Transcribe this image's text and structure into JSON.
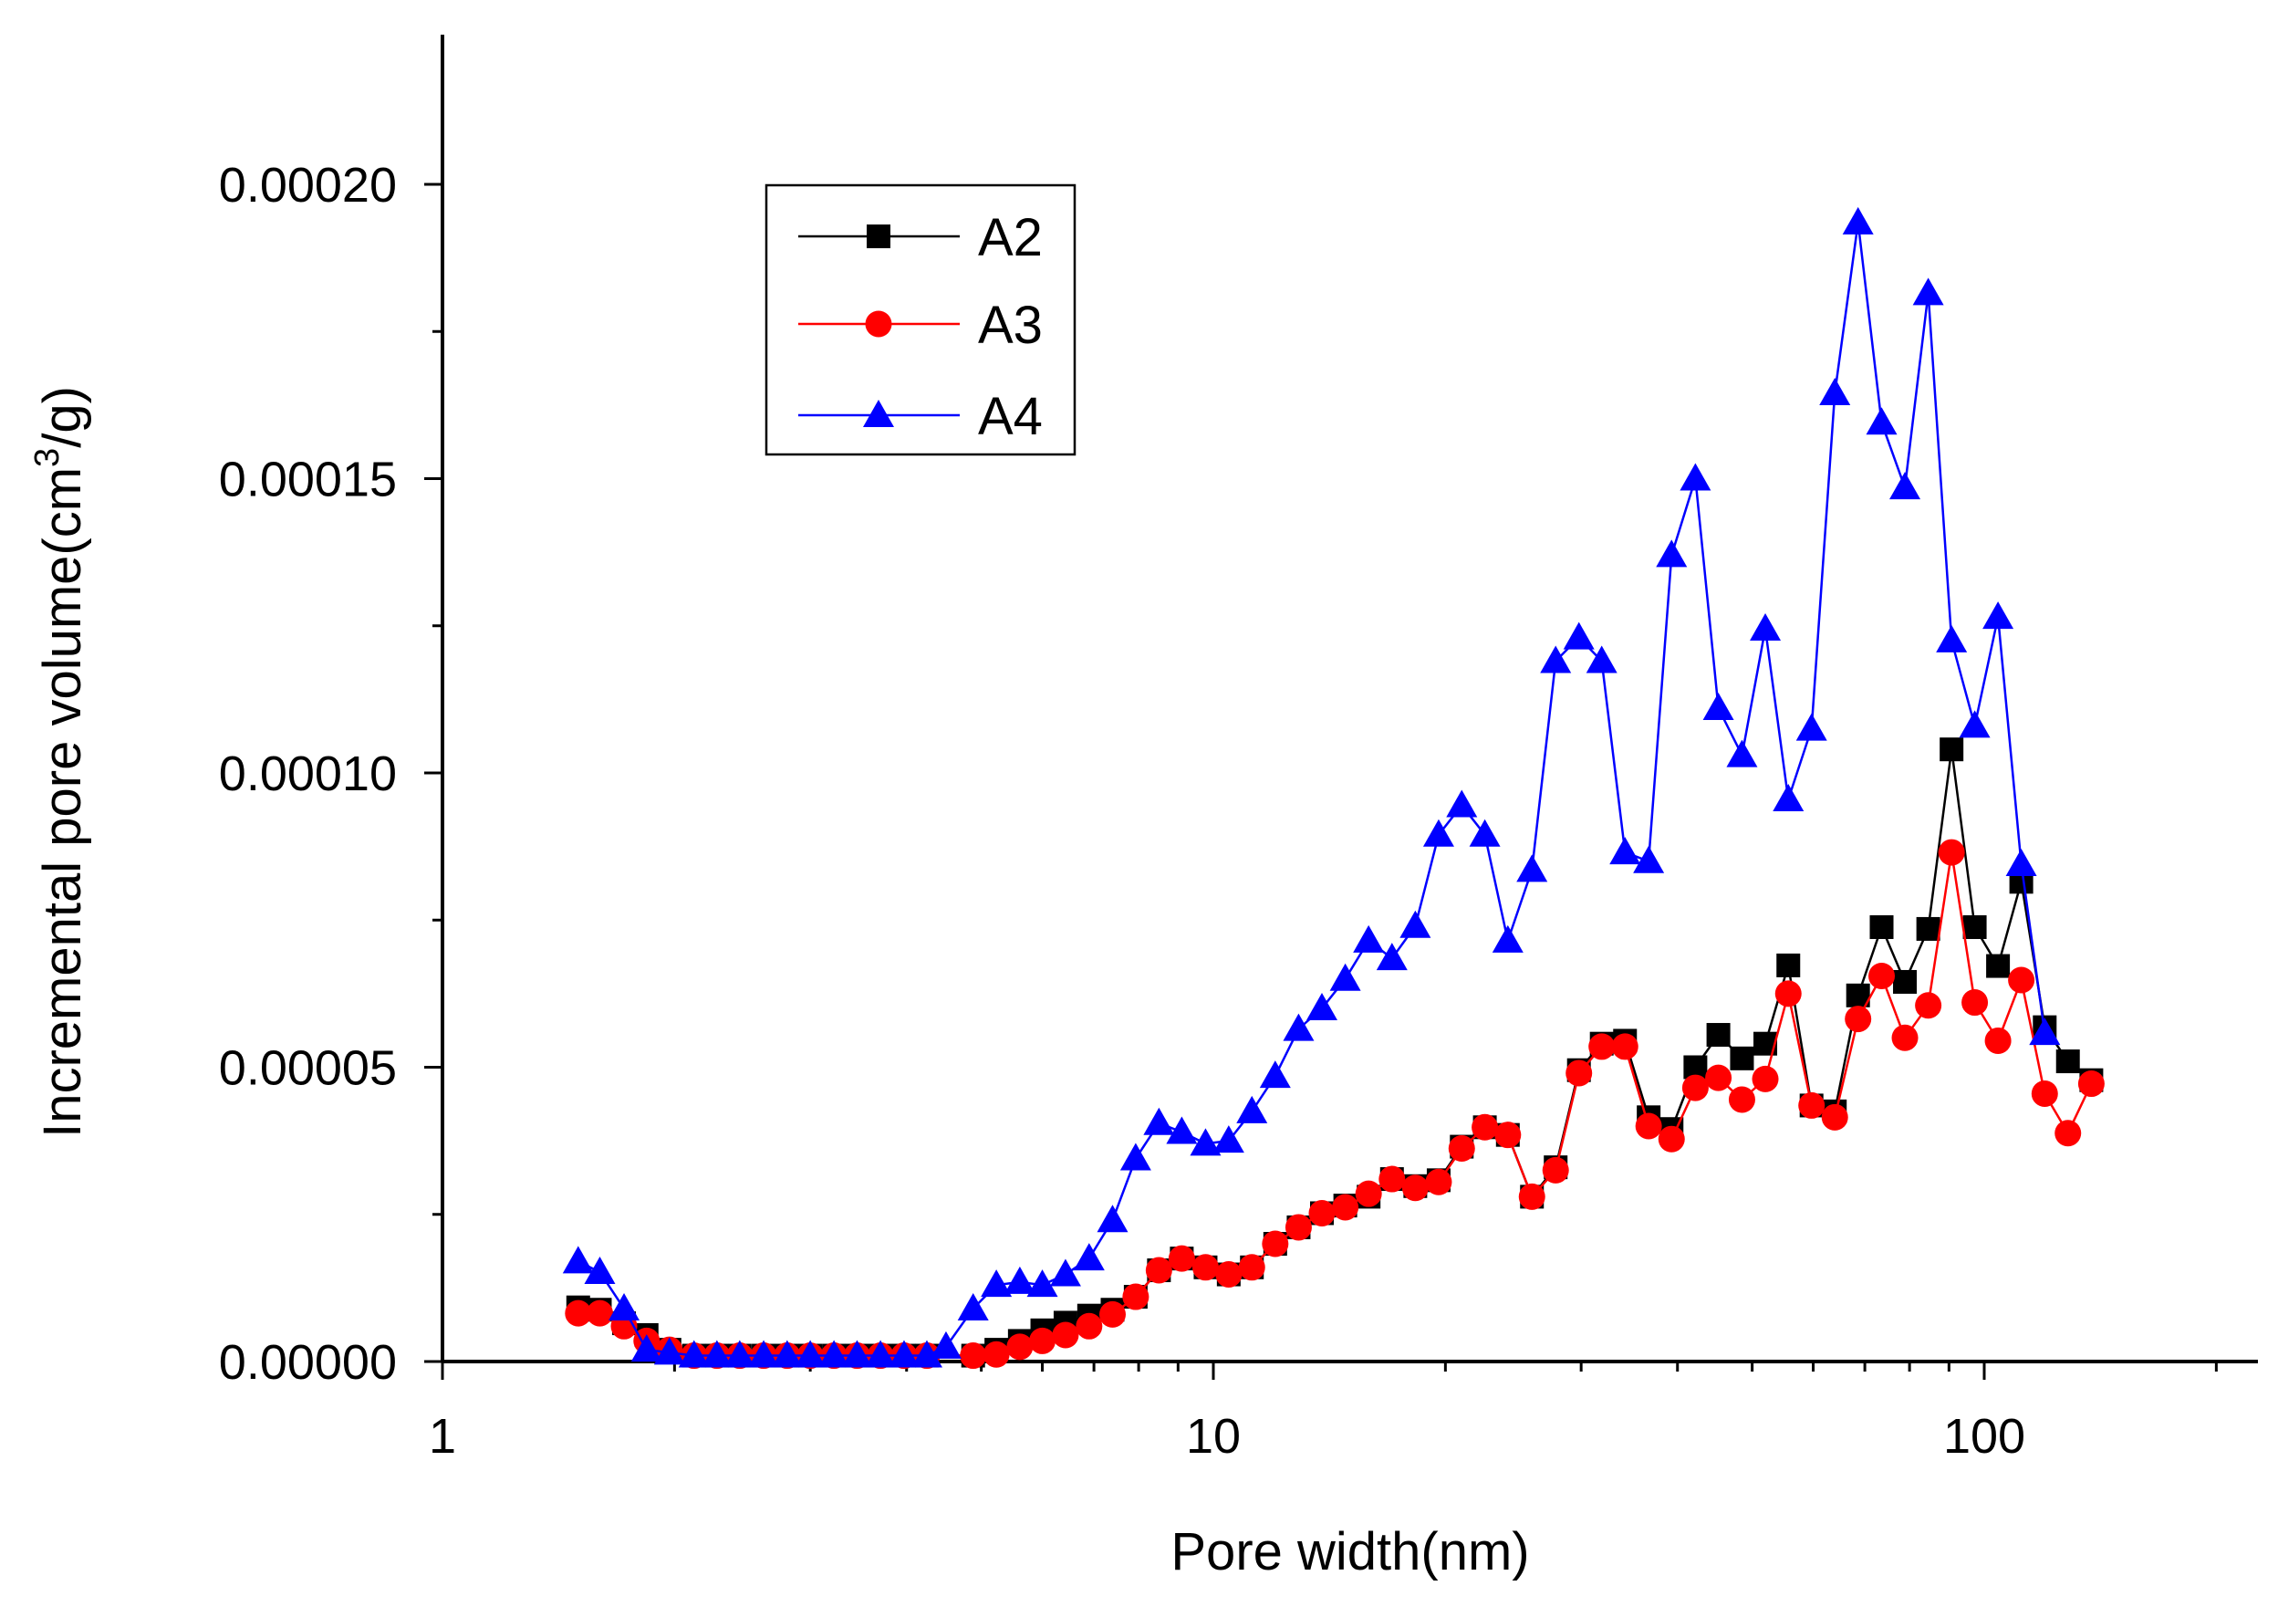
{
  "chart_data": {
    "type": "line",
    "title": "",
    "xlabel": "Pore width(nm)",
    "ylabel_main": "Incremental pore volume(cm",
    "ylabel_sup": "3",
    "ylabel_end": "/g)",
    "xscale": "log",
    "xlim": [
      1,
      240
    ],
    "ylim": [
      0,
      0.000225
    ],
    "x_ticks": [
      {
        "value": 1,
        "label": "1"
      },
      {
        "value": 10,
        "label": "10"
      },
      {
        "value": 100,
        "label": "100"
      }
    ],
    "y_ticks": [
      {
        "value": 0.0,
        "label": "0.00000"
      },
      {
        "value": 5e-05,
        "label": "0.00005"
      },
      {
        "value": 0.0001,
        "label": "0.00010"
      },
      {
        "value": 0.00015,
        "label": "0.00015"
      },
      {
        "value": 0.0002,
        "label": "0.00020"
      }
    ],
    "legend_position": "upper-left",
    "series": [
      {
        "name": "A2",
        "color": "#000000",
        "marker": "square",
        "points": [
          [
            1.5,
            9.2e-06
          ],
          [
            1.6,
            8.8e-06
          ],
          [
            1.72,
            6.5e-06
          ],
          [
            1.84,
            4.5e-06
          ],
          [
            1.97,
            2e-06
          ],
          [
            2.12,
            1e-06
          ],
          [
            2.27,
            1e-06
          ],
          [
            2.43,
            1e-06
          ],
          [
            2.61,
            1e-06
          ],
          [
            2.8,
            1e-06
          ],
          [
            3.0,
            1e-06
          ],
          [
            3.22,
            1e-06
          ],
          [
            3.45,
            1e-06
          ],
          [
            3.7,
            1e-06
          ],
          [
            3.97,
            1e-06
          ],
          [
            4.25,
            1e-06
          ],
          [
            4.88,
            1e-06
          ],
          [
            5.23,
            2e-06
          ],
          [
            5.61,
            3.5e-06
          ],
          [
            6.0,
            5.3e-06
          ],
          [
            6.43,
            6.6e-06
          ],
          [
            6.9,
            7.8e-06
          ],
          [
            7.4,
            8.8e-06
          ],
          [
            7.93,
            1.1e-05
          ],
          [
            8.5,
            1.55e-05
          ],
          [
            9.1,
            1.75e-05
          ],
          [
            9.77,
            1.6e-05
          ],
          [
            10.47,
            1.48e-05
          ],
          [
            11.22,
            1.6e-05
          ],
          [
            12.03,
            2e-05
          ],
          [
            12.9,
            2.28e-05
          ],
          [
            13.83,
            2.52e-05
          ],
          [
            14.83,
            2.65e-05
          ],
          [
            15.9,
            2.8e-05
          ],
          [
            17.05,
            3.1e-05
          ],
          [
            18.28,
            2.98e-05
          ],
          [
            19.6,
            3.08e-05
          ],
          [
            21.0,
            3.65e-05
          ],
          [
            22.5,
            3.98e-05
          ],
          [
            24.1,
            3.85e-05
          ],
          [
            25.9,
            2.8e-05
          ],
          [
            27.8,
            3.3e-05
          ],
          [
            29.8,
            4.95e-05
          ],
          [
            31.9,
            5.4e-05
          ],
          [
            34.2,
            5.45e-05
          ],
          [
            36.7,
            4.15e-05
          ],
          [
            39.3,
            3.95e-05
          ],
          [
            42.2,
            5e-05
          ],
          [
            45.2,
            5.55e-05
          ],
          [
            48.5,
            5.15e-05
          ],
          [
            52.0,
            5.4e-05
          ],
          [
            55.7,
            6.73e-05
          ],
          [
            59.7,
            4.35e-05
          ],
          [
            64.0,
            4.25e-05
          ],
          [
            68.6,
            6.22e-05
          ],
          [
            73.6,
            7.38e-05
          ],
          [
            78.9,
            6.45e-05
          ],
          [
            84.6,
            7.35e-05
          ],
          [
            90.7,
            0.000104
          ],
          [
            97.2,
            7.38e-05
          ],
          [
            104.2,
            6.72e-05
          ],
          [
            111.7,
            8.15e-05
          ],
          [
            119.8,
            5.68e-05
          ],
          [
            128.4,
            5.1e-05
          ],
          [
            137.7,
            4.78e-05
          ]
        ]
      },
      {
        "name": "A3",
        "color": "#ff0000",
        "marker": "circle",
        "points": [
          [
            1.5,
            8.2e-06
          ],
          [
            1.6,
            8.2e-06
          ],
          [
            1.72,
            6e-06
          ],
          [
            1.84,
            3.5e-06
          ],
          [
            1.97,
            2e-06
          ],
          [
            2.12,
            1e-06
          ],
          [
            2.27,
            1e-06
          ],
          [
            2.43,
            1e-06
          ],
          [
            2.61,
            1e-06
          ],
          [
            2.8,
            1e-06
          ],
          [
            3.0,
            1e-06
          ],
          [
            3.22,
            1e-06
          ],
          [
            3.45,
            1e-06
          ],
          [
            3.7,
            1e-06
          ],
          [
            3.97,
            1e-06
          ],
          [
            4.25,
            1e-06
          ],
          [
            4.88,
            1e-06
          ],
          [
            5.23,
            1.2e-06
          ],
          [
            5.61,
            2.5e-06
          ],
          [
            6.0,
            3.5e-06
          ],
          [
            6.43,
            4.5e-06
          ],
          [
            6.9,
            6e-06
          ],
          [
            7.4,
            8e-06
          ],
          [
            7.93,
            1.1e-05
          ],
          [
            8.5,
            1.55e-05
          ],
          [
            9.1,
            1.75e-05
          ],
          [
            9.77,
            1.6e-05
          ],
          [
            10.47,
            1.48e-05
          ],
          [
            11.22,
            1.6e-05
          ],
          [
            12.03,
            2e-05
          ],
          [
            12.9,
            2.28e-05
          ],
          [
            13.83,
            2.52e-05
          ],
          [
            14.83,
            2.62e-05
          ],
          [
            15.9,
            2.85e-05
          ],
          [
            17.05,
            3.1e-05
          ],
          [
            18.28,
            2.95e-05
          ],
          [
            19.6,
            3.05e-05
          ],
          [
            21.0,
            3.62e-05
          ],
          [
            22.5,
            3.98e-05
          ],
          [
            24.1,
            3.85e-05
          ],
          [
            25.9,
            2.8e-05
          ],
          [
            27.8,
            3.25e-05
          ],
          [
            29.8,
            4.9e-05
          ],
          [
            31.9,
            5.35e-05
          ],
          [
            34.2,
            5.35e-05
          ],
          [
            36.7,
            4e-05
          ],
          [
            39.3,
            3.78e-05
          ],
          [
            42.2,
            4.65e-05
          ],
          [
            45.2,
            4.82e-05
          ],
          [
            48.5,
            4.45e-05
          ],
          [
            52.0,
            4.8e-05
          ],
          [
            55.7,
            6.25e-05
          ],
          [
            59.7,
            4.35e-05
          ],
          [
            64.0,
            4.15e-05
          ],
          [
            68.6,
            5.82e-05
          ],
          [
            73.6,
            6.55e-05
          ],
          [
            78.9,
            5.5e-05
          ],
          [
            84.6,
            6.05e-05
          ],
          [
            90.7,
            8.65e-05
          ],
          [
            97.2,
            6.1e-05
          ],
          [
            104.2,
            5.45e-05
          ],
          [
            111.7,
            6.48e-05
          ],
          [
            119.8,
            4.55e-05
          ],
          [
            128.4,
            3.88e-05
          ],
          [
            137.7,
            4.72e-05
          ]
        ]
      },
      {
        "name": "A4",
        "color": "#0000ff",
        "marker": "triangle",
        "points": [
          [
            1.5,
            1.7e-05
          ],
          [
            1.6,
            1.52e-05
          ],
          [
            1.72,
            9e-06
          ],
          [
            1.84,
            2e-06
          ],
          [
            1.97,
            1.5e-06
          ],
          [
            2.12,
            1e-06
          ],
          [
            2.27,
            1e-06
          ],
          [
            2.43,
            1e-06
          ],
          [
            2.61,
            1e-06
          ],
          [
            2.8,
            1e-06
          ],
          [
            3.0,
            1e-06
          ],
          [
            3.22,
            1e-06
          ],
          [
            3.45,
            1e-06
          ],
          [
            3.7,
            1e-06
          ],
          [
            3.97,
            1e-06
          ],
          [
            4.25,
            1e-06
          ],
          [
            4.5,
            2.5e-06
          ],
          [
            4.88,
            9e-06
          ],
          [
            5.23,
            1.3e-05
          ],
          [
            5.61,
            1.35e-05
          ],
          [
            6.0,
            1.3e-05
          ],
          [
            6.43,
            1.48e-05
          ],
          [
            6.9,
            1.75e-05
          ],
          [
            7.4,
            2.4e-05
          ],
          [
            7.93,
            3.45e-05
          ],
          [
            8.5,
            4.05e-05
          ],
          [
            9.1,
            3.9e-05
          ],
          [
            9.77,
            3.7e-05
          ],
          [
            10.47,
            3.75e-05
          ],
          [
            11.22,
            4.25e-05
          ],
          [
            12.03,
            4.85e-05
          ],
          [
            12.9,
            5.65e-05
          ],
          [
            13.83,
            6e-05
          ],
          [
            14.83,
            6.5e-05
          ],
          [
            15.9,
            7.15e-05
          ],
          [
            17.05,
            6.85e-05
          ],
          [
            18.28,
            7.4e-05
          ],
          [
            19.6,
            8.95e-05
          ],
          [
            21.0,
            9.45e-05
          ],
          [
            22.5,
            8.95e-05
          ],
          [
            24.1,
            7.15e-05
          ],
          [
            25.9,
            8.35e-05
          ],
          [
            27.8,
            0.000119
          ],
          [
            29.8,
            0.000123
          ],
          [
            31.9,
            0.000119
          ],
          [
            34.2,
            8.65e-05
          ],
          [
            36.7,
            8.5e-05
          ],
          [
            39.3,
            0.000137
          ],
          [
            42.2,
            0.00015
          ],
          [
            45.2,
            0.000111
          ],
          [
            48.5,
            0.000103
          ],
          [
            52.0,
            0.0001245
          ],
          [
            55.7,
            9.55e-05
          ],
          [
            59.7,
            0.0001075
          ],
          [
            64.0,
            0.0001645
          ],
          [
            68.6,
            0.0001935
          ],
          [
            73.6,
            0.0001595
          ],
          [
            78.9,
            0.0001485
          ],
          [
            84.6,
            0.0001815
          ],
          [
            90.7,
            0.0001225
          ],
          [
            97.2,
            0.000108
          ],
          [
            104.2,
            0.0001265
          ],
          [
            111.7,
            8.45e-05
          ],
          [
            119.8,
            5.58e-05
          ]
        ]
      }
    ]
  }
}
